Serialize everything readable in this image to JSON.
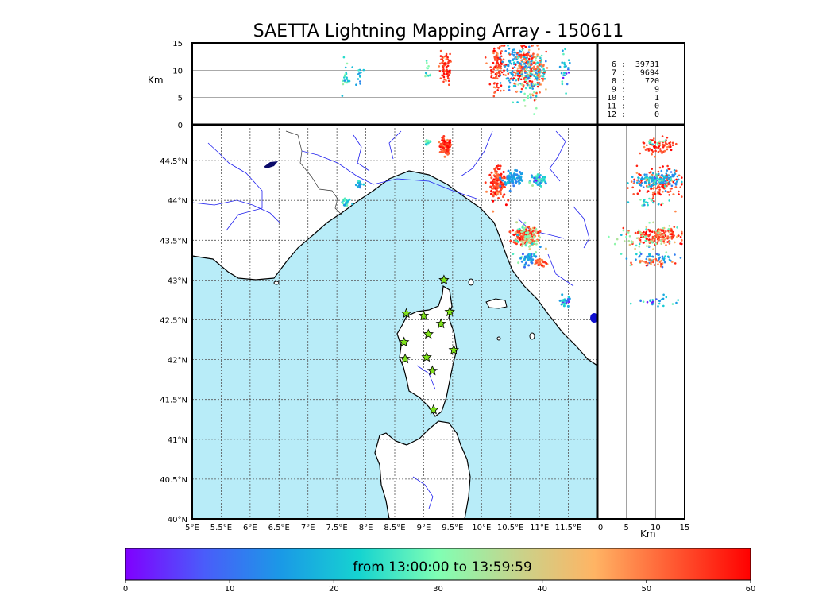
{
  "title": "SAETTA Lightning Mapping Array - 150611",
  "colors": {
    "sea": "#b8ecf8",
    "rivers": "#2020ee",
    "grid": "#555555",
    "station_fill": "#7fe21b",
    "highlight_text": "#ff0000",
    "blue_blob": "#1010d0"
  },
  "map": {
    "lon_range": [
      5,
      12
    ],
    "lat_range": [
      40,
      44.95
    ],
    "lon_ticks": [
      "5°E",
      "5.5°E",
      "6°E",
      "6.5°E",
      "7°E",
      "7.5°E",
      "8°E",
      "8.5°E",
      "9°E",
      "9.5°E",
      "10°E",
      "10.5°E",
      "11°E",
      "11.5°E"
    ],
    "lon_tick_values": [
      5,
      5.5,
      6,
      6.5,
      7,
      7.5,
      8,
      8.5,
      9,
      9.5,
      10,
      10.5,
      11,
      11.5
    ],
    "lat_ticks": [
      "40°N",
      "40.5°N",
      "41°N",
      "41.5°N",
      "42°N",
      "42.5°N",
      "43°N",
      "43.5°N",
      "44°N",
      "44.5°N"
    ],
    "lat_tick_values": [
      40,
      40.5,
      41,
      41.5,
      42,
      42.5,
      43,
      43.5,
      44,
      44.5
    ],
    "grid": "dotted",
    "stations": [
      {
        "lon": 9.35,
        "lat": 43.0
      },
      {
        "lon": 8.7,
        "lat": 42.58
      },
      {
        "lon": 9.0,
        "lat": 42.55
      },
      {
        "lon": 9.45,
        "lat": 42.6
      },
      {
        "lon": 9.3,
        "lat": 42.45
      },
      {
        "lon": 9.08,
        "lat": 42.32
      },
      {
        "lon": 8.66,
        "lat": 42.22
      },
      {
        "lon": 9.52,
        "lat": 42.12
      },
      {
        "lon": 8.68,
        "lat": 42.01
      },
      {
        "lon": 9.05,
        "lat": 42.03
      },
      {
        "lon": 9.15,
        "lat": 41.86
      },
      {
        "lon": 9.17,
        "lat": 41.37
      }
    ]
  },
  "altitude_panel": {
    "ylabel": "Km",
    "yticks": [
      "0",
      "5",
      "10",
      "15"
    ],
    "ytick_values": [
      0,
      5,
      10,
      15
    ],
    "range": [
      0,
      15
    ]
  },
  "side_panel": {
    "xlabel": "Km",
    "xticks": [
      "0",
      "5",
      "10",
      "15"
    ],
    "xtick_values": [
      0,
      5,
      10,
      15
    ],
    "range": [
      0,
      15
    ]
  },
  "station_counts": [
    {
      "stations": "6",
      "sep": ":",
      "count": "39731",
      "highlight": false
    },
    {
      "stations": "7",
      "sep": ":",
      "count": "9694",
      "highlight": true
    },
    {
      "stations": "8",
      "sep": ":",
      "count": "720",
      "highlight": false
    },
    {
      "stations": "9",
      "sep": ":",
      "count": "9",
      "highlight": false
    },
    {
      "stations": "10",
      "sep": ":",
      "count": "1",
      "highlight": false
    },
    {
      "stations": "11",
      "sep": ":",
      "count": "0",
      "highlight": false
    },
    {
      "stations": "12",
      "sep": ":",
      "count": "0",
      "highlight": false
    }
  ],
  "colorbar": {
    "label": "from 13:00:00 to 13:59:59",
    "ticks": [
      "0",
      "10",
      "20",
      "30",
      "40",
      "50",
      "60"
    ],
    "tick_values": [
      0,
      10,
      20,
      30,
      40,
      50,
      60
    ],
    "range": [
      0,
      60
    ],
    "colormap": "rainbow"
  },
  "clusters": [
    {
      "lon": 9.38,
      "lat": 44.68,
      "sx": 0.05,
      "sy": 0.05,
      "t": 55,
      "tsd": 4,
      "alt": 10.3,
      "asd": 1.6,
      "n": 70
    },
    {
      "lon": 9.08,
      "lat": 44.73,
      "sx": 0.03,
      "sy": 0.03,
      "t": 30,
      "tsd": 5,
      "alt": 10.5,
      "asd": 1.2,
      "n": 12
    },
    {
      "lon": 10.27,
      "lat": 44.2,
      "sx": 0.07,
      "sy": 0.1,
      "t": 55,
      "tsd": 4,
      "alt": 10.5,
      "asd": 2.0,
      "n": 130
    },
    {
      "lon": 10.55,
      "lat": 44.28,
      "sx": 0.1,
      "sy": 0.04,
      "t": 15,
      "tsd": 3,
      "alt": 10.5,
      "asd": 2.0,
      "n": 80
    },
    {
      "lon": 10.98,
      "lat": 44.25,
      "sx": 0.07,
      "sy": 0.04,
      "t": 22,
      "tsd": 8,
      "alt": 9.8,
      "asd": 1.6,
      "n": 55
    },
    {
      "lon": 10.75,
      "lat": 43.55,
      "sx": 0.1,
      "sy": 0.05,
      "t": 54,
      "tsd": 5,
      "alt": 10.5,
      "asd": 2.3,
      "n": 150
    },
    {
      "lon": 10.8,
      "lat": 43.5,
      "sx": 0.12,
      "sy": 0.1,
      "t": 33,
      "tsd": 5,
      "alt": 8.5,
      "asd": 2.5,
      "n": 60
    },
    {
      "lon": 10.82,
      "lat": 43.28,
      "sx": 0.06,
      "sy": 0.04,
      "t": 14,
      "tsd": 4,
      "alt": 9.5,
      "asd": 2.0,
      "n": 40
    },
    {
      "lon": 11.0,
      "lat": 43.22,
      "sx": 0.05,
      "sy": 0.03,
      "t": 52,
      "tsd": 4,
      "alt": 9.5,
      "asd": 1.5,
      "n": 30
    },
    {
      "lon": 11.45,
      "lat": 42.72,
      "sx": 0.05,
      "sy": 0.04,
      "t": 18,
      "tsd": 6,
      "alt": 9.5,
      "asd": 1.5,
      "n": 25
    },
    {
      "lon": 7.65,
      "lat": 43.97,
      "sx": 0.04,
      "sy": 0.04,
      "t": 22,
      "tsd": 6,
      "alt": 8.5,
      "asd": 1.5,
      "n": 20
    },
    {
      "lon": 7.9,
      "lat": 44.2,
      "sx": 0.03,
      "sy": 0.03,
      "t": 18,
      "tsd": 4,
      "alt": 9.0,
      "asd": 1.2,
      "n": 12
    }
  ]
}
